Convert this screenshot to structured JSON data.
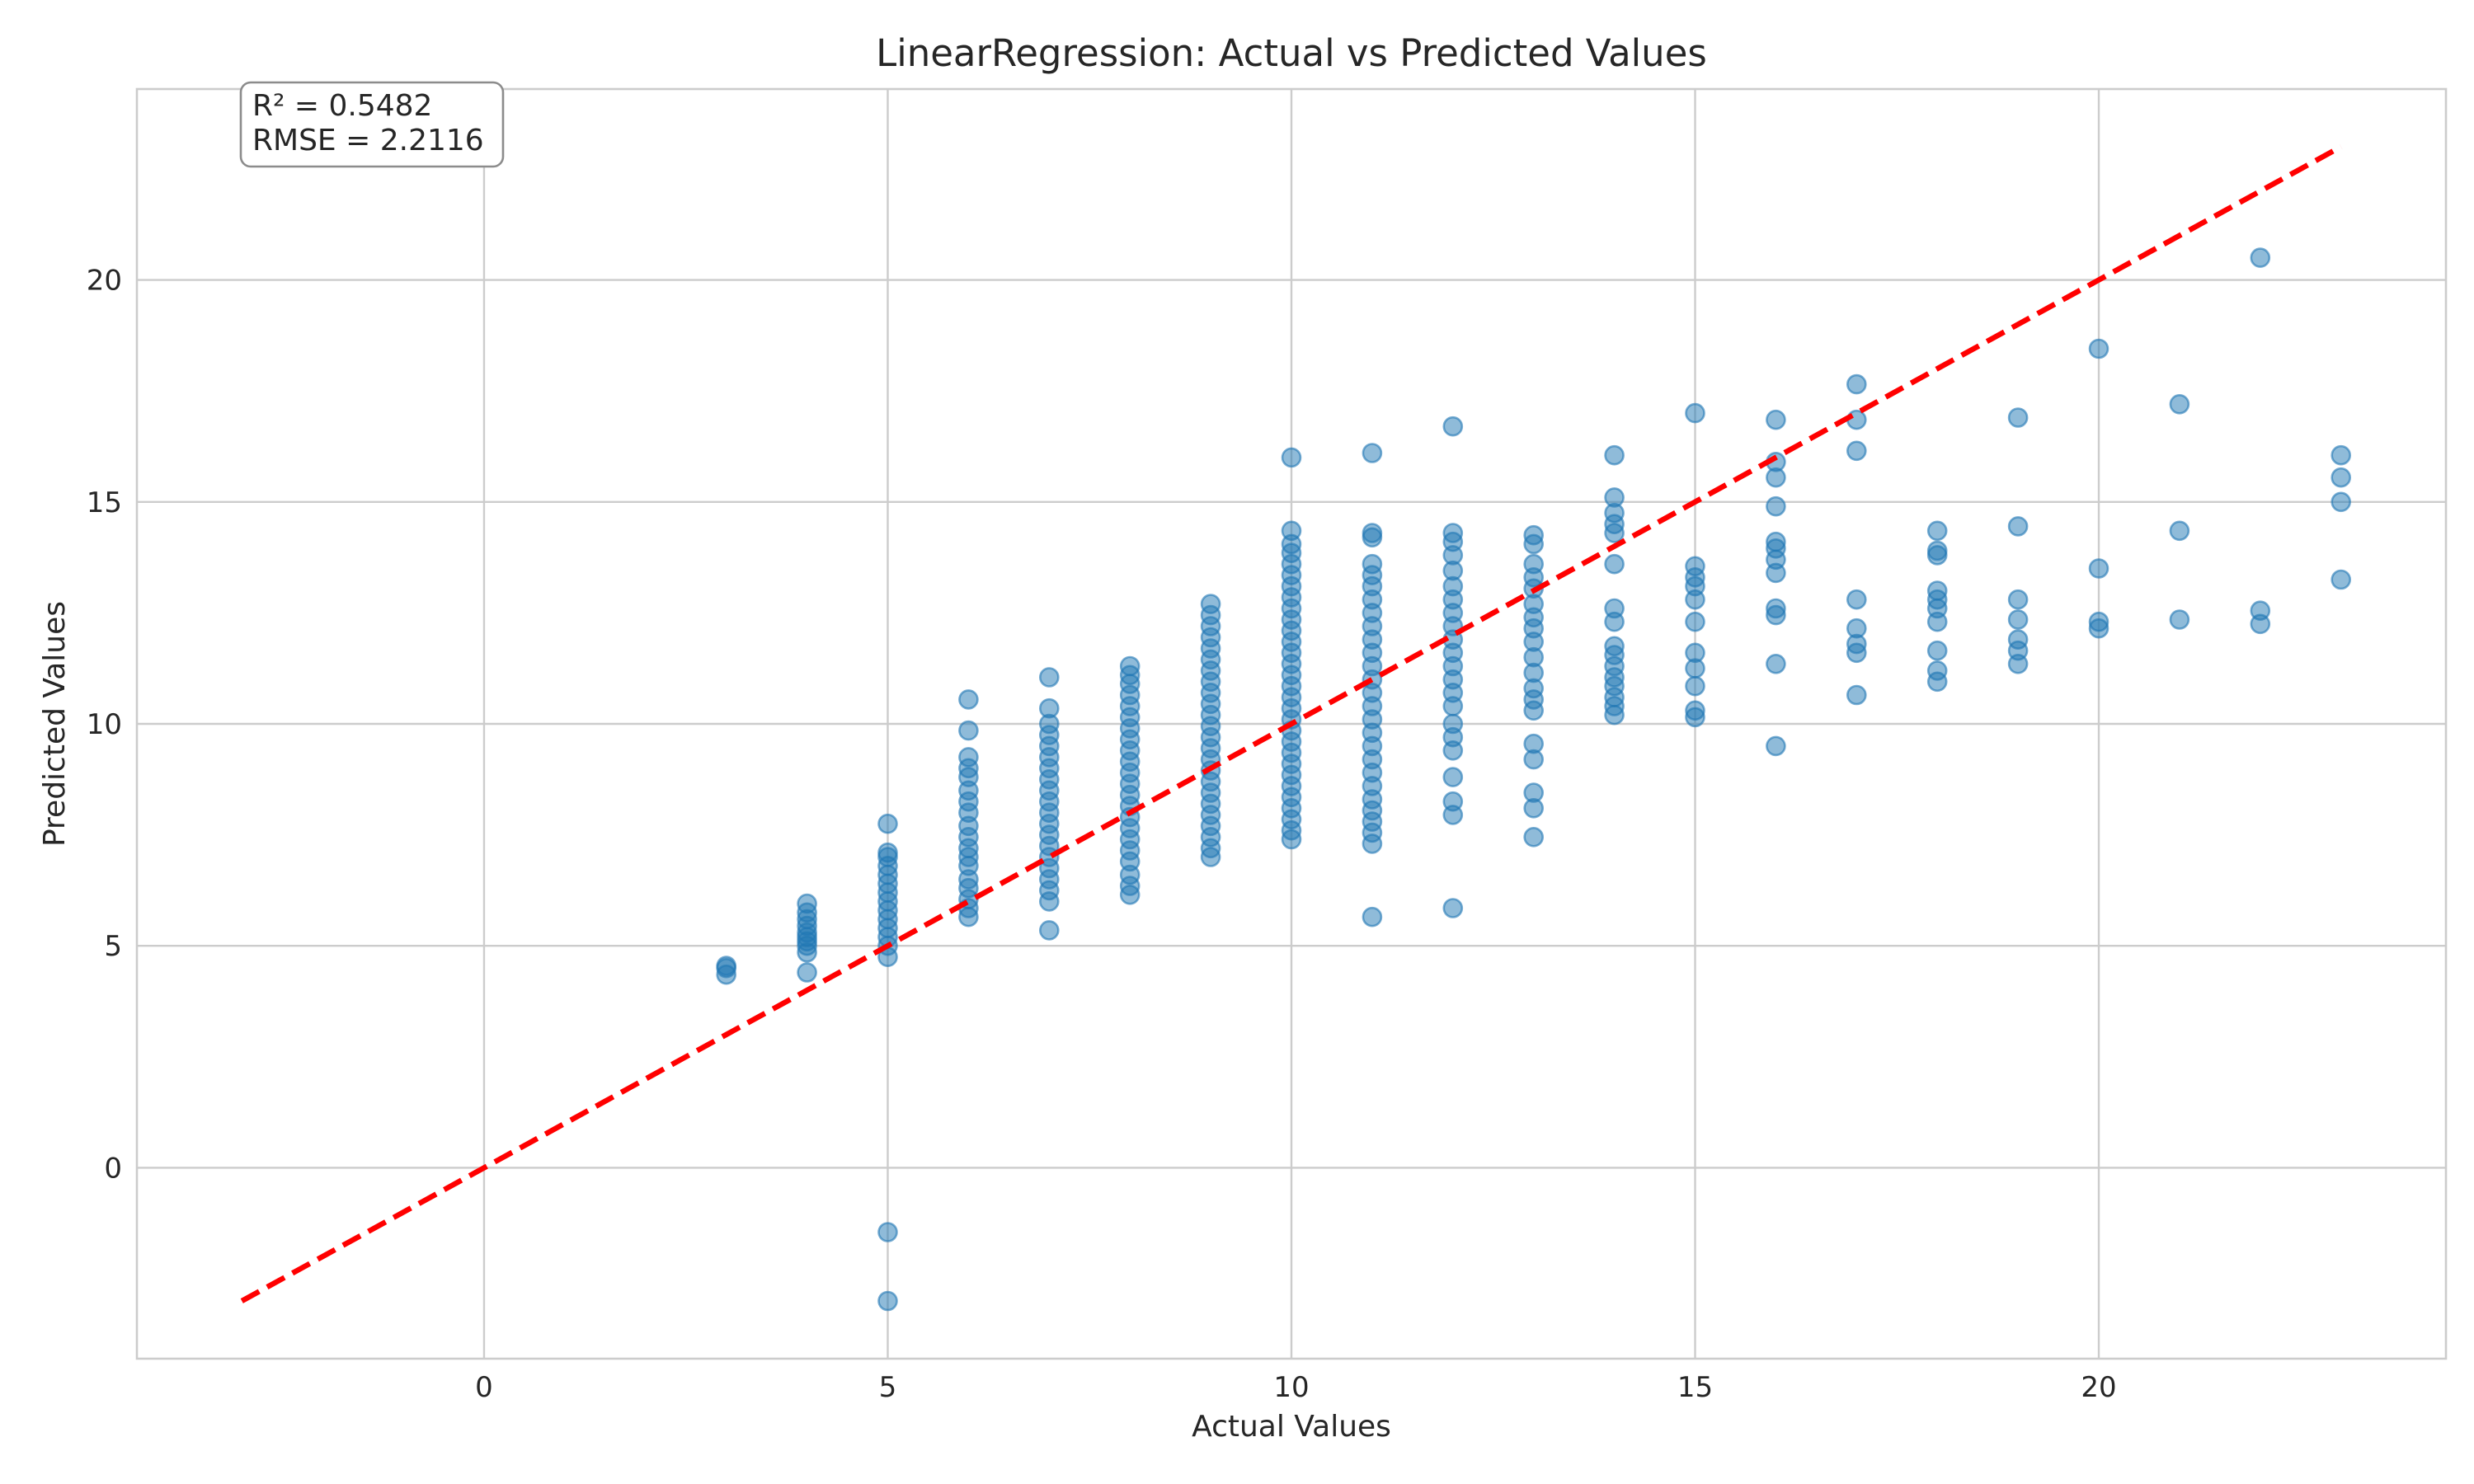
{
  "chart_data": {
    "type": "scatter",
    "title": "LinearRegression: Actual vs Predicted Values",
    "xlabel": "Actual Values",
    "ylabel": "Predicted Values",
    "xlim": [
      -4.3,
      24.3
    ],
    "ylim": [
      -4.3,
      24.3
    ],
    "xticks": [
      0,
      5,
      10,
      15,
      20
    ],
    "yticks": [
      0,
      5,
      10,
      15,
      20
    ],
    "grid": true,
    "annotation": {
      "r2": "R² = 0.5482",
      "rmse": "RMSE = 2.2116",
      "position": "top-left"
    },
    "reference_line": {
      "style": "dashed",
      "color": "#ff0000",
      "x": [
        -3,
        23
      ],
      "y": [
        -3,
        23
      ]
    },
    "point_color": "#1f77b4",
    "series": [
      {
        "points": [
          [
            3,
            4.35
          ],
          [
            3,
            4.5
          ],
          [
            3,
            4.55
          ],
          [
            4,
            4.4
          ],
          [
            4,
            4.85
          ],
          [
            4,
            5.0
          ],
          [
            4,
            5.1
          ],
          [
            4,
            5.2
          ],
          [
            4,
            5.3
          ],
          [
            4,
            5.45
          ],
          [
            4,
            5.6
          ],
          [
            4,
            5.75
          ],
          [
            4,
            5.95
          ],
          [
            5,
            -3.0
          ],
          [
            5,
            -1.45
          ],
          [
            5,
            4.75
          ],
          [
            5,
            5.0
          ],
          [
            5,
            5.2
          ],
          [
            5,
            5.4
          ],
          [
            5,
            5.6
          ],
          [
            5,
            5.8
          ],
          [
            5,
            6.0
          ],
          [
            5,
            6.2
          ],
          [
            5,
            6.4
          ],
          [
            5,
            6.6
          ],
          [
            5,
            6.8
          ],
          [
            5,
            7.0
          ],
          [
            5,
            7.1
          ],
          [
            5,
            7.75
          ],
          [
            6,
            5.65
          ],
          [
            6,
            5.85
          ],
          [
            6,
            6.05
          ],
          [
            6,
            6.3
          ],
          [
            6,
            6.5
          ],
          [
            6,
            6.8
          ],
          [
            6,
            7.0
          ],
          [
            6,
            7.2
          ],
          [
            6,
            7.45
          ],
          [
            6,
            7.7
          ],
          [
            6,
            8.0
          ],
          [
            6,
            8.25
          ],
          [
            6,
            8.5
          ],
          [
            6,
            8.8
          ],
          [
            6,
            9.0
          ],
          [
            6,
            9.25
          ],
          [
            6,
            9.85
          ],
          [
            6,
            10.55
          ],
          [
            7,
            5.35
          ],
          [
            7,
            6.0
          ],
          [
            7,
            6.25
          ],
          [
            7,
            6.5
          ],
          [
            7,
            6.75
          ],
          [
            7,
            7.0
          ],
          [
            7,
            7.25
          ],
          [
            7,
            7.5
          ],
          [
            7,
            7.75
          ],
          [
            7,
            8.0
          ],
          [
            7,
            8.25
          ],
          [
            7,
            8.5
          ],
          [
            7,
            8.75
          ],
          [
            7,
            9.0
          ],
          [
            7,
            9.25
          ],
          [
            7,
            9.5
          ],
          [
            7,
            9.75
          ],
          [
            7,
            10.0
          ],
          [
            7,
            10.35
          ],
          [
            7,
            11.05
          ],
          [
            8,
            6.15
          ],
          [
            8,
            6.35
          ],
          [
            8,
            6.6
          ],
          [
            8,
            6.9
          ],
          [
            8,
            7.15
          ],
          [
            8,
            7.4
          ],
          [
            8,
            7.65
          ],
          [
            8,
            7.9
          ],
          [
            8,
            8.15
          ],
          [
            8,
            8.4
          ],
          [
            8,
            8.65
          ],
          [
            8,
            8.9
          ],
          [
            8,
            9.15
          ],
          [
            8,
            9.4
          ],
          [
            8,
            9.65
          ],
          [
            8,
            9.9
          ],
          [
            8,
            10.15
          ],
          [
            8,
            10.4
          ],
          [
            8,
            10.65
          ],
          [
            8,
            10.9
          ],
          [
            8,
            11.1
          ],
          [
            8,
            11.3
          ],
          [
            9,
            7.0
          ],
          [
            9,
            7.2
          ],
          [
            9,
            7.45
          ],
          [
            9,
            7.7
          ],
          [
            9,
            7.95
          ],
          [
            9,
            8.2
          ],
          [
            9,
            8.45
          ],
          [
            9,
            8.7
          ],
          [
            9,
            8.95
          ],
          [
            9,
            9.2
          ],
          [
            9,
            9.45
          ],
          [
            9,
            9.7
          ],
          [
            9,
            9.95
          ],
          [
            9,
            10.2
          ],
          [
            9,
            10.45
          ],
          [
            9,
            10.7
          ],
          [
            9,
            10.95
          ],
          [
            9,
            11.2
          ],
          [
            9,
            11.45
          ],
          [
            9,
            11.7
          ],
          [
            9,
            11.95
          ],
          [
            9,
            12.2
          ],
          [
            9,
            12.45
          ],
          [
            9,
            12.7
          ],
          [
            10,
            7.4
          ],
          [
            10,
            7.6
          ],
          [
            10,
            7.85
          ],
          [
            10,
            8.1
          ],
          [
            10,
            8.35
          ],
          [
            10,
            8.6
          ],
          [
            10,
            8.85
          ],
          [
            10,
            9.1
          ],
          [
            10,
            9.35
          ],
          [
            10,
            9.6
          ],
          [
            10,
            9.85
          ],
          [
            10,
            10.1
          ],
          [
            10,
            10.35
          ],
          [
            10,
            10.6
          ],
          [
            10,
            10.85
          ],
          [
            10,
            11.1
          ],
          [
            10,
            11.35
          ],
          [
            10,
            11.6
          ],
          [
            10,
            11.85
          ],
          [
            10,
            12.1
          ],
          [
            10,
            12.35
          ],
          [
            10,
            12.6
          ],
          [
            10,
            12.85
          ],
          [
            10,
            13.1
          ],
          [
            10,
            13.35
          ],
          [
            10,
            13.6
          ],
          [
            10,
            13.85
          ],
          [
            10,
            14.05
          ],
          [
            10,
            14.35
          ],
          [
            10,
            16.0
          ],
          [
            11,
            5.65
          ],
          [
            11,
            7.3
          ],
          [
            11,
            7.55
          ],
          [
            11,
            7.8
          ],
          [
            11,
            8.05
          ],
          [
            11,
            8.3
          ],
          [
            11,
            8.6
          ],
          [
            11,
            8.9
          ],
          [
            11,
            9.2
          ],
          [
            11,
            9.5
          ],
          [
            11,
            9.8
          ],
          [
            11,
            10.1
          ],
          [
            11,
            10.4
          ],
          [
            11,
            10.7
          ],
          [
            11,
            11.0
          ],
          [
            11,
            11.3
          ],
          [
            11,
            11.6
          ],
          [
            11,
            11.9
          ],
          [
            11,
            12.2
          ],
          [
            11,
            12.5
          ],
          [
            11,
            12.8
          ],
          [
            11,
            13.1
          ],
          [
            11,
            13.35
          ],
          [
            11,
            13.6
          ],
          [
            11,
            14.2
          ],
          [
            11,
            14.3
          ],
          [
            11,
            16.1
          ],
          [
            12,
            5.85
          ],
          [
            12,
            7.95
          ],
          [
            12,
            8.25
          ],
          [
            12,
            8.8
          ],
          [
            12,
            9.4
          ],
          [
            12,
            9.7
          ],
          [
            12,
            10.0
          ],
          [
            12,
            10.4
          ],
          [
            12,
            10.7
          ],
          [
            12,
            11.0
          ],
          [
            12,
            11.3
          ],
          [
            12,
            11.6
          ],
          [
            12,
            11.9
          ],
          [
            12,
            12.2
          ],
          [
            12,
            12.5
          ],
          [
            12,
            12.8
          ],
          [
            12,
            13.1
          ],
          [
            12,
            13.45
          ],
          [
            12,
            13.8
          ],
          [
            12,
            14.1
          ],
          [
            12,
            14.3
          ],
          [
            12,
            16.7
          ],
          [
            13,
            7.45
          ],
          [
            13,
            8.1
          ],
          [
            13,
            8.45
          ],
          [
            13,
            9.2
          ],
          [
            13,
            9.55
          ],
          [
            13,
            10.3
          ],
          [
            13,
            10.55
          ],
          [
            13,
            10.8
          ],
          [
            13,
            11.15
          ],
          [
            13,
            11.5
          ],
          [
            13,
            11.85
          ],
          [
            13,
            12.15
          ],
          [
            13,
            12.4
          ],
          [
            13,
            12.7
          ],
          [
            13,
            13.05
          ],
          [
            13,
            13.3
          ],
          [
            13,
            13.6
          ],
          [
            13,
            14.05
          ],
          [
            13,
            14.25
          ],
          [
            14,
            10.2
          ],
          [
            14,
            10.4
          ],
          [
            14,
            10.6
          ],
          [
            14,
            10.85
          ],
          [
            14,
            11.05
          ],
          [
            14,
            11.3
          ],
          [
            14,
            11.55
          ],
          [
            14,
            11.75
          ],
          [
            14,
            12.3
          ],
          [
            14,
            12.6
          ],
          [
            14,
            13.6
          ],
          [
            14,
            14.3
          ],
          [
            14,
            14.5
          ],
          [
            14,
            14.75
          ],
          [
            14,
            15.1
          ],
          [
            14,
            16.05
          ],
          [
            15,
            10.15
          ],
          [
            15,
            10.3
          ],
          [
            15,
            10.85
          ],
          [
            15,
            11.25
          ],
          [
            15,
            11.6
          ],
          [
            15,
            12.3
          ],
          [
            15,
            12.8
          ],
          [
            15,
            13.1
          ],
          [
            15,
            13.3
          ],
          [
            15,
            13.55
          ],
          [
            15,
            17.0
          ],
          [
            16,
            9.5
          ],
          [
            16,
            11.35
          ],
          [
            16,
            12.45
          ],
          [
            16,
            12.6
          ],
          [
            16,
            13.4
          ],
          [
            16,
            13.7
          ],
          [
            16,
            13.95
          ],
          [
            16,
            14.1
          ],
          [
            16,
            14.9
          ],
          [
            16,
            15.55
          ],
          [
            16,
            15.9
          ],
          [
            16,
            16.85
          ],
          [
            17,
            10.65
          ],
          [
            17,
            11.6
          ],
          [
            17,
            11.8
          ],
          [
            17,
            12.15
          ],
          [
            17,
            12.8
          ],
          [
            17,
            16.15
          ],
          [
            17,
            16.85
          ],
          [
            17,
            17.65
          ],
          [
            18,
            10.95
          ],
          [
            18,
            11.2
          ],
          [
            18,
            11.65
          ],
          [
            18,
            12.3
          ],
          [
            18,
            12.6
          ],
          [
            18,
            12.8
          ],
          [
            18,
            13.0
          ],
          [
            18,
            13.8
          ],
          [
            18,
            13.9
          ],
          [
            18,
            14.35
          ],
          [
            19,
            11.35
          ],
          [
            19,
            11.65
          ],
          [
            19,
            11.9
          ],
          [
            19,
            12.35
          ],
          [
            19,
            12.8
          ],
          [
            19,
            14.45
          ],
          [
            19,
            16.9
          ],
          [
            20,
            12.15
          ],
          [
            20,
            12.3
          ],
          [
            20,
            13.5
          ],
          [
            20,
            18.45
          ],
          [
            21,
            12.35
          ],
          [
            21,
            14.35
          ],
          [
            21,
            17.2
          ],
          [
            22,
            12.25
          ],
          [
            22,
            12.55
          ],
          [
            22,
            20.5
          ],
          [
            23,
            13.25
          ],
          [
            23,
            15.0
          ],
          [
            23,
            15.55
          ],
          [
            23,
            16.05
          ]
        ]
      }
    ]
  }
}
